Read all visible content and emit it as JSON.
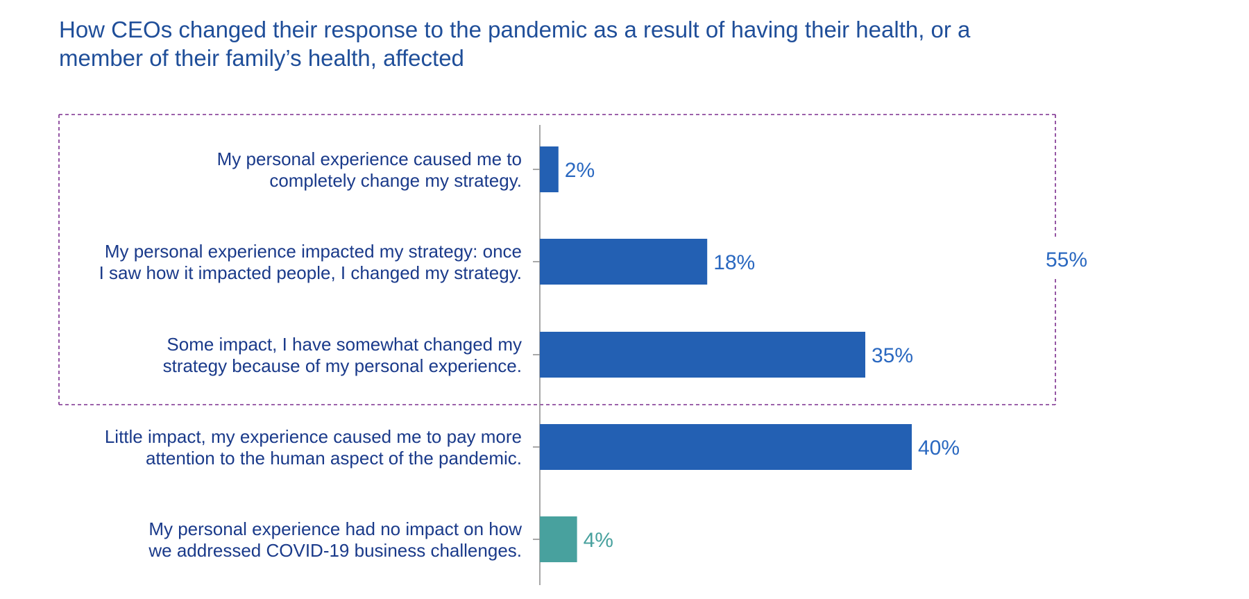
{
  "chart_data": {
    "type": "bar",
    "orientation": "horizontal",
    "title": [
      "How CEOs changed their response to the pandemic as a result of having their health, or a",
      "member of their family’s health, affected"
    ],
    "categories": [
      [
        "My personal experience caused me to",
        "completely change my strategy."
      ],
      [
        "My personal experience impacted my strategy: once",
        "I saw how it impacted people, I changed my strategy."
      ],
      [
        "Some impact, I have somewhat changed my",
        "strategy because of my personal experience."
      ],
      [
        "Little impact, my experience caused me to pay more",
        "attention to the human aspect of the pandemic."
      ],
      [
        "My personal experience had no impact on how",
        "we addressed COVID-19 business challenges."
      ]
    ],
    "values": [
      2,
      18,
      35,
      40,
      4
    ],
    "value_labels": [
      "2%",
      "18%",
      "35%",
      "40%",
      "4%"
    ],
    "bar_colors": [
      "#2360b3",
      "#2360b3",
      "#2360b3",
      "#2360b3",
      "#48a19e"
    ],
    "label_colors": [
      "#2a68c0",
      "#2a68c0",
      "#2a68c0",
      "#2a68c0",
      "#48a19e"
    ],
    "xlim": [
      0,
      50
    ],
    "grid": false,
    "group_bracket": {
      "label": "55%",
      "covers_categories": [
        0,
        1,
        2
      ],
      "color": "#7b2d8e",
      "label_color": "#2a68c0"
    }
  }
}
